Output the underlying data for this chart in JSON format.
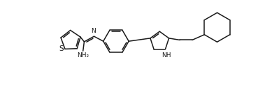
{
  "bg_color": "#ffffff",
  "line_color": "#1a1a1a",
  "line_width": 1.1,
  "font_size": 6.5,
  "figsize": [
    3.69,
    1.45
  ],
  "dpi": 100,
  "xlim": [
    0,
    10.5
  ],
  "ylim": [
    0,
    4.0
  ]
}
